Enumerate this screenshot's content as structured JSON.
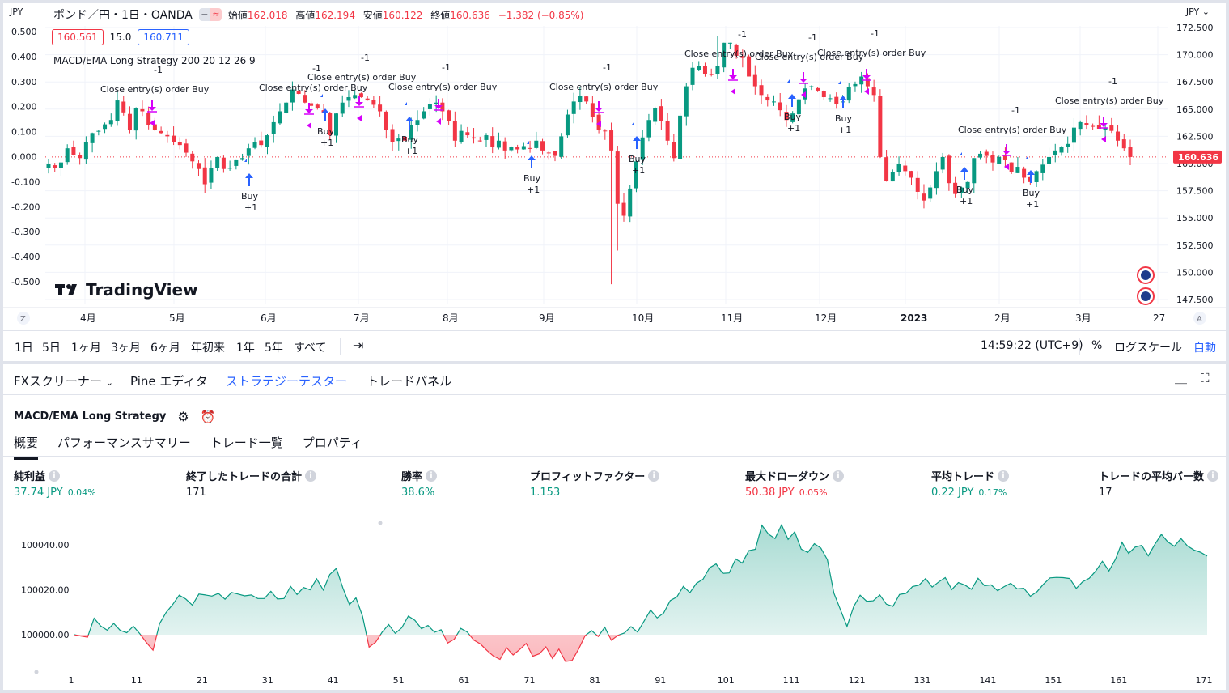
{
  "header": {
    "currency_left": "JPY",
    "currency_right": "JPY",
    "symbol": "ポンド／円・1日・OANDA",
    "ohlc": [
      {
        "label": "始値",
        "value": "162.018"
      },
      {
        "label": "高値",
        "value": "162.194"
      },
      {
        "label": "安値",
        "value": "160.122"
      },
      {
        "label": "終値",
        "value": "160.636"
      },
      {
        "label": "",
        "value": "−1.382 (−0.85%)"
      }
    ],
    "bid": "160.561",
    "spread": "15.0",
    "ask": "160.711",
    "strategy_legend": "MACD/EMA Long Strategy 200 20 12 26 9",
    "logo_text": "TradingView",
    "last_price": "160.636"
  },
  "price_axis": [
    "172.500",
    "170.000",
    "167.500",
    "165.000",
    "162.500",
    "160.000",
    "157.500",
    "155.000",
    "152.500",
    "150.000",
    "147.500"
  ],
  "left_axis": [
    "0.500",
    "0.400",
    "0.300",
    "0.200",
    "0.100",
    "0.000",
    "-0.100",
    "-0.200",
    "-0.300",
    "-0.400",
    "-0.500"
  ],
  "time_axis": {
    "left_btn": "Z",
    "right_btn": "A",
    "labels": [
      "4月",
      "5月",
      "6月",
      "7月",
      "8月",
      "9月",
      "10月",
      "11月",
      "12月",
      "2023",
      "2月",
      "3月",
      "27"
    ]
  },
  "annotations": {
    "close_text": "Close entry(s) order Buy",
    "minus_one": "-1",
    "buy_text": "Buy",
    "plus_one": "+1"
  },
  "range_bar": {
    "ranges": [
      "1日",
      "5日",
      "1ヶ月",
      "3ヶ月",
      "6ヶ月",
      "年初来",
      "1年",
      "5年",
      "すべて"
    ],
    "time": "14:59:22 (UTC+9)",
    "percent": "%",
    "log": "ログスケール",
    "auto": "自動"
  },
  "panel_tabs": [
    "FXスクリーナー",
    "Pine エディタ",
    "ストラテジーテスター",
    "トレードパネル"
  ],
  "strategy": {
    "name": "MACD/EMA Long Strategy",
    "subtabs": [
      "概要",
      "パフォーマンスサマリー",
      "トレード一覧",
      "プロパティ"
    ]
  },
  "metrics": [
    {
      "title": "純利益",
      "value": "37.74 JPY",
      "pct": "0.04%",
      "color": "green"
    },
    {
      "title": "終了したトレードの合計",
      "value": "171",
      "pct": "",
      "color": "default"
    },
    {
      "title": "勝率",
      "value": "38.6%",
      "pct": "",
      "color": "green"
    },
    {
      "title": "プロフィットファクター",
      "value": "1.153",
      "pct": "",
      "color": "green"
    },
    {
      "title": "最大ドローダウン",
      "value": "50.38 JPY",
      "pct": "0.05%",
      "color": "red"
    },
    {
      "title": "平均トレード",
      "value": "0.22 JPY",
      "pct": "0.17%",
      "color": "green"
    },
    {
      "title": "トレードの平均バー数",
      "value": "17",
      "pct": "",
      "color": "default"
    }
  ],
  "equity_chart": {
    "y_labels": [
      "100040.00",
      "100020.00",
      "100000.00"
    ],
    "x_labels": [
      "1",
      "11",
      "21",
      "31",
      "41",
      "51",
      "61",
      "71",
      "81",
      "91",
      "101",
      "111",
      "121",
      "131",
      "141",
      "151",
      "161",
      "171"
    ]
  },
  "chart_data": [
    {
      "type": "line",
      "series": [
        {
          "values": [
            100000.0,
            99999.4,
            99998.9,
            100007.3,
            100003.9,
            100002.0,
            100005.0,
            100001.9,
            100000.9,
            100003.8,
            100000.4,
            99996.5,
            99993.1,
            100004.9,
            100009.9,
            100013.4,
            100017.6,
            100015.9,
            100013.2,
            100018.1,
            100017.7,
            100017.2,
            100018.4,
            100015.8,
            100018.8,
            100018.1,
            100017.3,
            100017.7,
            100016.1,
            100016.1,
            100019.3,
            100015.9,
            100016.1,
            100021.5,
            100017.9,
            100021.0,
            100020.0,
            100024.9,
            100019.9,
            100026.8,
            100029.5,
            100020.8,
            100013.4,
            100016.4,
            100008.3,
            99994.5,
            99996.7,
            100001.1,
            100004.5,
            100000.6,
            100003.1,
            100008.3,
            100006.4,
            100002.7,
            100004.1,
            100001.1,
            100002.2,
            99996.3,
            99998.0,
            100002.8,
            100001.2,
            99997.6,
            99995.9,
            99993.0,
            99990.5,
            99989.0,
            99994.2,
            99991.0,
            99993.4,
            99996.1,
            99990.4,
            99991.5,
            99994.6,
            99989.4,
            99993.6,
            99988.1,
            99988.5,
            99993.6,
            99999.6,
            100001.8,
            99999.2,
            100003.3,
            99997.5,
            99999.7,
            100000.8,
            100003.6,
            100001.2,
            100006.0,
            100011.0,
            100007.5,
            100009.7,
            100015.2,
            100016.8,
            100021.5,
            100018.7,
            100022.9,
            100024.7,
            100029.8,
            100031.5,
            100027.3,
            100027.5,
            100033.7,
            100031.9,
            100037.4,
            100038.0,
            100048.7,
            100044.8,
            100042.8,
            100048.9,
            100042.4,
            100045.8,
            100038.1,
            100036.6,
            100040.5,
            100038.6,
            100033.4,
            100018.5,
            100011.1,
            100003.7,
            100012.4,
            100017.6,
            100014.9,
            100015.1,
            100017.7,
            100013.6,
            100012.6,
            100017.9,
            100018.4,
            100021.4,
            100022.1,
            100025.0,
            100021.2,
            100023.5,
            100025.4,
            100020.1,
            100023.2,
            100022.1,
            100020.2,
            100025.1,
            100021.8,
            100022.2,
            100019.6,
            100021.4,
            100022.9,
            100020.4,
            100020.7,
            100017.1,
            100019.1,
            100022.5,
            100025.3,
            100025.5,
            100025.4,
            100025.0,
            100020.6,
            100023.6,
            100025.1,
            100028.4,
            100032.7,
            100028.4,
            100033.6,
            100041.1,
            100036.2,
            100039.0,
            100039.8,
            100035.1,
            100040.2,
            100044.7,
            100041.3,
            100039.4,
            100042.8,
            100039.5,
            100037.7,
            100036.7,
            100035.0
          ]
        }
      ]
    },
    {
      "type": "candlestick",
      "series": [
        {
          "values": [
            160.0,
            159.6,
            160.1,
            161.4,
            160.8,
            160.5,
            162.0,
            162.8,
            163.0,
            163.6,
            164.0,
            165.8,
            164.7,
            163.1,
            165.1,
            164.8,
            163.5,
            163.1,
            162.8,
            162.5,
            162.0,
            161.7,
            161.0,
            160.2,
            159.5,
            158.1,
            159.6,
            160.6,
            159.5,
            159.6,
            160.3,
            160.5,
            161.4,
            162.0,
            161.7,
            162.6,
            163.8,
            164.8,
            165.6,
            166.8,
            166.4,
            165.6,
            165.3,
            165.1,
            164.7,
            162.6,
            164.6,
            165.6,
            166.1,
            166.3,
            166.1,
            165.8,
            165.4,
            164.8,
            163.1,
            162.0,
            162.3,
            162.1,
            163.5,
            164.0,
            164.8,
            165.5,
            165.6,
            164.8,
            163.9,
            162.1,
            163.0,
            162.6,
            162.3,
            162.1,
            162.6,
            161.5,
            162.1,
            161.2,
            161.5,
            161.3,
            161.6,
            161.4,
            162.1,
            161.2,
            161.0,
            160.7,
            162.5,
            164.5,
            165.7,
            166.2,
            165.7,
            164.3,
            163.1,
            163.0,
            161.2,
            156.3,
            155.2,
            157.7,
            160.2,
            162.4,
            164.0,
            165.1,
            163.9,
            162.1,
            160.5,
            164.4,
            167.1,
            168.8,
            169.0,
            168.2,
            168.2,
            169.0,
            171.1,
            171.1,
            169.9,
            169.7,
            168.0,
            167.1,
            166.3,
            165.8,
            165.7,
            164.9,
            164.0,
            164.6,
            165.9,
            166.9,
            167.1,
            166.7,
            166.1,
            166.0,
            165.5,
            165.7,
            167.0,
            167.3,
            168.0,
            167.1,
            166.3,
            160.6,
            158.4,
            159.2,
            160.0,
            159.3,
            158.7,
            157.4,
            156.6,
            157.8,
            159.3,
            160.6,
            158.2,
            157.2,
            157.8,
            158.3,
            160.5,
            160.9,
            160.7,
            160.1,
            160.6,
            160.3,
            159.2,
            159.7,
            158.7,
            158.3,
            159.3,
            159.9,
            160.6,
            161.2,
            161.5,
            161.8,
            163.3,
            163.8,
            163.5,
            163.4,
            163.2,
            163.3,
            163.0,
            162.1,
            161.4,
            160.6
          ]
        }
      ]
    }
  ]
}
